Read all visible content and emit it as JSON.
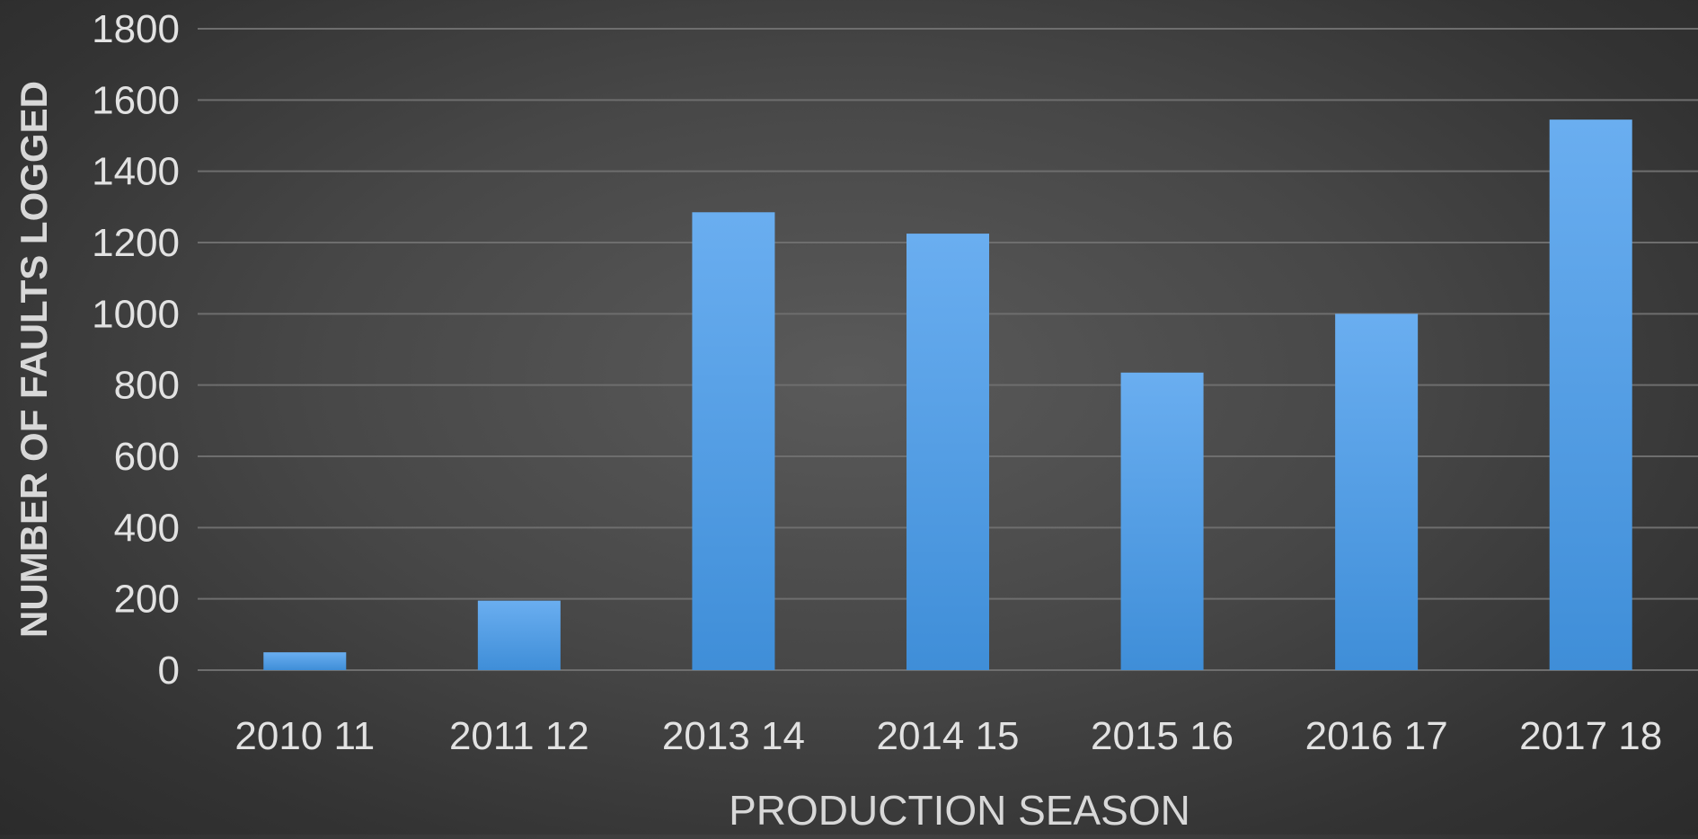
{
  "chart_data": {
    "type": "bar",
    "title": "",
    "xlabel": "PRODUCTION SEASON",
    "ylabel": "NUMBER OF FAULTS LOGGED",
    "categories": [
      "2010 11",
      "2011 12",
      "2013 14",
      "2014 15",
      "2015 16",
      "2016 17",
      "2017 18"
    ],
    "values": [
      50,
      195,
      1285,
      1225,
      835,
      1000,
      1545
    ],
    "ylim": [
      0,
      1800
    ],
    "yticks": [
      0,
      200,
      400,
      600,
      800,
      1000,
      1200,
      1400,
      1600,
      1800
    ],
    "grid": true,
    "legend": "none",
    "colors": {
      "bar_top": "#6aaef0",
      "bar_bottom": "#3f8ed8",
      "grid": "#6e6e6e",
      "text": "#e2e2e2",
      "axis_title": "#d8d8d8"
    }
  }
}
